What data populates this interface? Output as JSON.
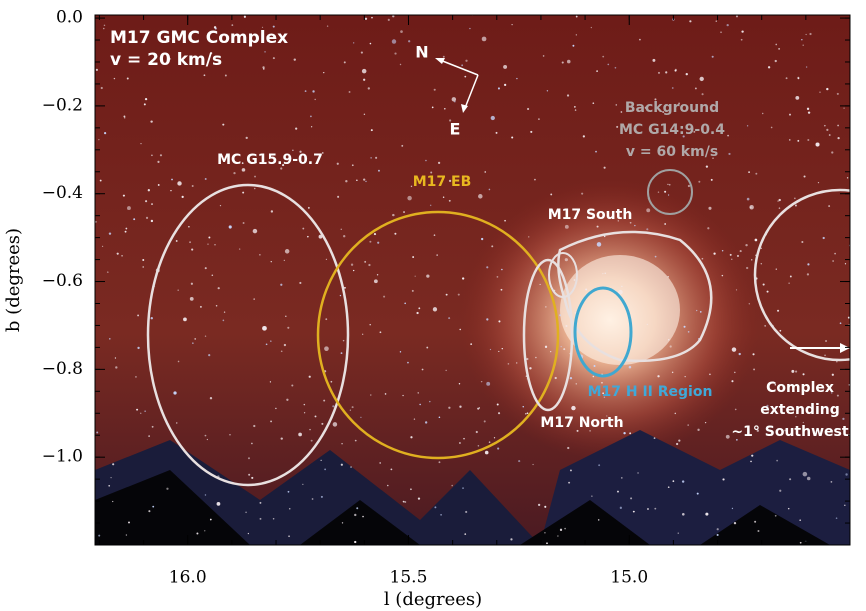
{
  "chart_data": {
    "type": "image",
    "xlabel": "l (degrees)",
    "ylabel": "b (degrees)",
    "xlim": [
      16.21,
      14.5
    ],
    "ylim": [
      -1.2,
      0.007
    ],
    "xticks": [
      {
        "value": 16.0,
        "label": "16.0"
      },
      {
        "value": 15.5,
        "label": "15.5"
      },
      {
        "value": 15.0,
        "label": "15.0"
      }
    ],
    "yticks": [
      {
        "value": 0.0,
        "label": "0.0"
      },
      {
        "value": -0.2,
        "label": "−0.2"
      },
      {
        "value": -0.4,
        "label": "−0.4"
      },
      {
        "value": -0.6,
        "label": "−0.6"
      },
      {
        "value": -0.8,
        "label": "−0.8"
      },
      {
        "value": -1.0,
        "label": "−1.0"
      }
    ],
    "annotations": [
      "M17 GMC Complex",
      "v = 20 km/s",
      "N",
      "E",
      "Background",
      "MC G14:9-0.4",
      "v = 60 km/s",
      "MC G15.9-0.7",
      "M17 EB",
      "M17 South",
      "M17 North",
      "M17 H II Region",
      "Complex",
      "extending",
      "~1° Southwest"
    ]
  }
}
